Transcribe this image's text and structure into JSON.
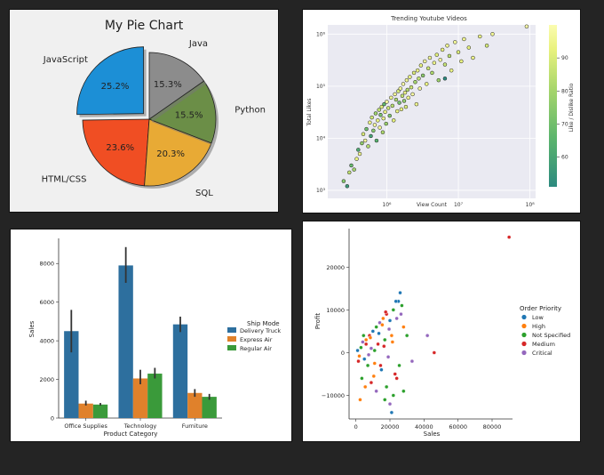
{
  "chart_data": [
    {
      "type": "pie",
      "title": "My Pie Chart",
      "slices": [
        {
          "label": "JavaScript",
          "value": 25.2,
          "pct": "25.2%",
          "color": "#1c8fd6",
          "explode": true
        },
        {
          "label": "HTML/CSS",
          "value": 23.6,
          "pct": "23.6%",
          "color": "#f04e23"
        },
        {
          "label": "SQL",
          "value": 20.3,
          "pct": "20.3%",
          "color": "#e8aa35"
        },
        {
          "label": "Python",
          "value": 15.5,
          "pct": "15.5%",
          "color": "#6b8e47"
        },
        {
          "label": "Java",
          "value": 15.3,
          "pct": "15.3%",
          "color": "#8c8c8c"
        }
      ]
    },
    {
      "type": "scatter",
      "title": "Trending Youtube Videos",
      "xlabel": "View Count",
      "ylabel": "Total Likes",
      "xscale": "log",
      "yscale": "log",
      "xlim": [
        150000,
        120000000
      ],
      "ylim": [
        700,
        1500000
      ],
      "xticks": [
        {
          "v": 1000000,
          "label": "10⁶"
        },
        {
          "v": 10000000,
          "label": "10⁷"
        },
        {
          "v": 100000000,
          "label": "10⁸"
        }
      ],
      "yticks": [
        {
          "v": 1000,
          "label": "10³"
        },
        {
          "v": 10000,
          "label": "10⁴"
        },
        {
          "v": 100000,
          "label": "10⁵"
        },
        {
          "v": 1000000,
          "label": "10⁶"
        }
      ],
      "colorbar": {
        "label": "Like / Dislike Ratio",
        "min": 51,
        "max": 100,
        "ticks": [
          60,
          70,
          80,
          90
        ],
        "colors": [
          "#2c8a7f",
          "#5cb56d",
          "#a6d56b",
          "#e9f27e",
          "#fbfcb0"
        ]
      },
      "points": [
        [
          250000,
          1500,
          70
        ],
        [
          280000,
          1200,
          55
        ],
        [
          300000,
          2200,
          80
        ],
        [
          320000,
          3000,
          65
        ],
        [
          350000,
          2500,
          75
        ],
        [
          380000,
          4000,
          88
        ],
        [
          400000,
          6000,
          60
        ],
        [
          420000,
          5000,
          92
        ],
        [
          450000,
          8000,
          72
        ],
        [
          470000,
          12000,
          85
        ],
        [
          500000,
          9000,
          95
        ],
        [
          520000,
          15000,
          66
        ],
        [
          550000,
          7000,
          78
        ],
        [
          580000,
          20000,
          90
        ],
        [
          600000,
          11000,
          58
        ],
        [
          620000,
          25000,
          83
        ],
        [
          650000,
          14000,
          70
        ],
        [
          680000,
          18000,
          96
        ],
        [
          700000,
          30000,
          74
        ],
        [
          720000,
          9000,
          62
        ],
        [
          750000,
          22000,
          88
        ],
        [
          780000,
          35000,
          80
        ],
        [
          800000,
          16000,
          93
        ],
        [
          820000,
          28000,
          68
        ],
        [
          850000,
          40000,
          86
        ],
        [
          880000,
          13000,
          77
        ],
        [
          900000,
          24000,
          91
        ],
        [
          920000,
          45000,
          64
        ],
        [
          950000,
          32000,
          89
        ],
        [
          980000,
          19000,
          73
        ],
        [
          1000000,
          50000,
          95
        ],
        [
          1050000,
          38000,
          82
        ],
        [
          1100000,
          27000,
          69
        ],
        [
          1150000,
          60000,
          92
        ],
        [
          1200000,
          42000,
          79
        ],
        [
          1250000,
          22000,
          87
        ],
        [
          1300000,
          70000,
          94
        ],
        [
          1350000,
          55000,
          76
        ],
        [
          1400000,
          33000,
          90
        ],
        [
          1450000,
          80000,
          84
        ],
        [
          1500000,
          48000,
          67
        ],
        [
          1550000,
          90000,
          93
        ],
        [
          1600000,
          36000,
          88
        ],
        [
          1650000,
          65000,
          81
        ],
        [
          1700000,
          110000,
          97
        ],
        [
          1750000,
          52000,
          72
        ],
        [
          1800000,
          75000,
          90
        ],
        [
          1850000,
          40000,
          85
        ],
        [
          1900000,
          130000,
          93
        ],
        [
          1950000,
          85000,
          78
        ],
        [
          2000000,
          60000,
          91
        ],
        [
          2100000,
          150000,
          88
        ],
        [
          2200000,
          95000,
          83
        ],
        [
          2300000,
          70000,
          96
        ],
        [
          2400000,
          180000,
          86
        ],
        [
          2500000,
          120000,
          75
        ],
        [
          2600000,
          45000,
          92
        ],
        [
          2700000,
          200000,
          90
        ],
        [
          2800000,
          140000,
          80
        ],
        [
          2900000,
          90000,
          94
        ],
        [
          3000000,
          250000,
          87
        ],
        [
          3200000,
          160000,
          71
        ],
        [
          3400000,
          300000,
          95
        ],
        [
          3600000,
          110000,
          89
        ],
        [
          3800000,
          220000,
          82
        ],
        [
          4000000,
          350000,
          93
        ],
        [
          4300000,
          180000,
          77
        ],
        [
          4600000,
          280000,
          91
        ],
        [
          5000000,
          400000,
          86
        ],
        [
          5300000,
          130000,
          74
        ],
        [
          5600000,
          320000,
          95
        ],
        [
          6000000,
          500000,
          88
        ],
        [
          6500000,
          260000,
          81
        ],
        [
          7000000,
          600000,
          92
        ],
        [
          7500000,
          380000,
          79
        ],
        [
          8000000,
          200000,
          90
        ],
        [
          9000000,
          700000,
          94
        ],
        [
          10000000,
          450000,
          85
        ],
        [
          11000000,
          300000,
          89
        ],
        [
          12000000,
          800000,
          93
        ],
        [
          14000000,
          550000,
          87
        ],
        [
          16000000,
          350000,
          91
        ],
        [
          20000000,
          900000,
          90
        ],
        [
          25000000,
          600000,
          84
        ],
        [
          30000000,
          1000000,
          93
        ],
        [
          6500000,
          140000,
          40
        ],
        [
          90000000,
          1400000,
          98
        ]
      ]
    },
    {
      "type": "bar",
      "xlabel": "Product Category",
      "ylabel": "Sales",
      "categories": [
        "Office Supplies",
        "Technology",
        "Furniture"
      ],
      "ylim": [
        0,
        9300
      ],
      "yticks": [
        0,
        2000,
        4000,
        6000,
        8000
      ],
      "legend": {
        "title": "Ship Mode",
        "placement": "right"
      },
      "series": [
        {
          "name": "Delivery Truck",
          "color": "#2d6f9e",
          "values": [
            4500,
            7900,
            4850
          ],
          "err": [
            [
              3400,
              5600
            ],
            [
              7000,
              8850
            ],
            [
              4450,
              5250
            ]
          ]
        },
        {
          "name": "Express Air",
          "color": "#e0812b",
          "values": [
            750,
            2050,
            1300
          ],
          "err": [
            [
              650,
              900
            ],
            [
              1750,
              2500
            ],
            [
              1100,
              1500
            ]
          ]
        },
        {
          "name": "Regular Air",
          "color": "#3a9a3a",
          "values": [
            700,
            2300,
            1100
          ],
          "err": [
            [
              650,
              780
            ],
            [
              2050,
              2600
            ],
            [
              950,
              1250
            ]
          ]
        }
      ]
    },
    {
      "type": "scatter",
      "xlabel": "Sales",
      "ylabel": "Profit",
      "xlim": [
        -4000,
        92000
      ],
      "ylim": [
        -15500,
        29000
      ],
      "xticks": [
        0,
        20000,
        40000,
        60000,
        80000
      ],
      "yticks": [
        -10000,
        0,
        10000,
        20000
      ],
      "legend": {
        "title": "Order Priority",
        "placement": "right",
        "items": [
          {
            "name": "Low",
            "color": "#1f77b4"
          },
          {
            "name": "High",
            "color": "#ff7f0e"
          },
          {
            "name": "Not Specified",
            "color": "#2ca02c"
          },
          {
            "name": "Medium",
            "color": "#d62728"
          },
          {
            "name": "Critical",
            "color": "#9467bd"
          }
        ]
      },
      "points": [
        [
          1000,
          500,
          0
        ],
        [
          2000,
          -800,
          1
        ],
        [
          3000,
          1200,
          2
        ],
        [
          1500,
          -2000,
          3
        ],
        [
          4000,
          2500,
          4
        ],
        [
          5000,
          -1500,
          0
        ],
        [
          6000,
          3000,
          1
        ],
        [
          7000,
          -3000,
          2
        ],
        [
          8000,
          4000,
          3
        ],
        [
          9000,
          1000,
          4
        ],
        [
          10000,
          5000,
          0
        ],
        [
          11000,
          -2500,
          1
        ],
        [
          12000,
          6000,
          2
        ],
        [
          13000,
          2000,
          3
        ],
        [
          14000,
          7000,
          4
        ],
        [
          15000,
          -4000,
          0
        ],
        [
          16000,
          8000,
          1
        ],
        [
          17000,
          3000,
          2
        ],
        [
          18000,
          9000,
          3
        ],
        [
          19000,
          -1000,
          4
        ],
        [
          20000,
          7500,
          0
        ],
        [
          21000,
          4000,
          1
        ],
        [
          22000,
          10000,
          2
        ],
        [
          23000,
          -5000,
          3
        ],
        [
          24000,
          8000,
          4
        ],
        [
          25000,
          12000,
          0
        ],
        [
          26000,
          14000,
          0
        ],
        [
          27000,
          11000,
          2
        ],
        [
          28000,
          6000,
          1
        ],
        [
          3500,
          -6000,
          2
        ],
        [
          5500,
          -8000,
          1
        ],
        [
          2500,
          -11000,
          1
        ],
        [
          9000,
          -7000,
          3
        ],
        [
          12000,
          -9000,
          4
        ],
        [
          18000,
          -8000,
          2
        ],
        [
          20000,
          -12000,
          4
        ],
        [
          22000,
          -10000,
          2
        ],
        [
          24000,
          -6000,
          3
        ],
        [
          30000,
          4000,
          2
        ],
        [
          33000,
          -2000,
          4
        ],
        [
          42000,
          4000,
          4
        ],
        [
          46000,
          0,
          3
        ],
        [
          90000,
          27000,
          3
        ],
        [
          6000,
          2000,
          3
        ],
        [
          7500,
          -500,
          4
        ],
        [
          8500,
          3500,
          1
        ],
        [
          11000,
          500,
          2
        ],
        [
          13500,
          4500,
          0
        ],
        [
          16500,
          1500,
          3
        ],
        [
          19500,
          5500,
          4
        ],
        [
          21500,
          2500,
          1
        ],
        [
          14500,
          -3000,
          3
        ],
        [
          10500,
          -5500,
          1
        ],
        [
          4500,
          4000,
          2
        ],
        [
          23500,
          12000,
          0
        ],
        [
          17500,
          9500,
          3
        ],
        [
          15500,
          6500,
          1
        ],
        [
          26500,
          9000,
          4
        ],
        [
          25500,
          -3000,
          2
        ],
        [
          17000,
          -11000,
          2
        ],
        [
          21000,
          -14000,
          0
        ],
        [
          28000,
          -9000,
          2
        ]
      ]
    }
  ]
}
